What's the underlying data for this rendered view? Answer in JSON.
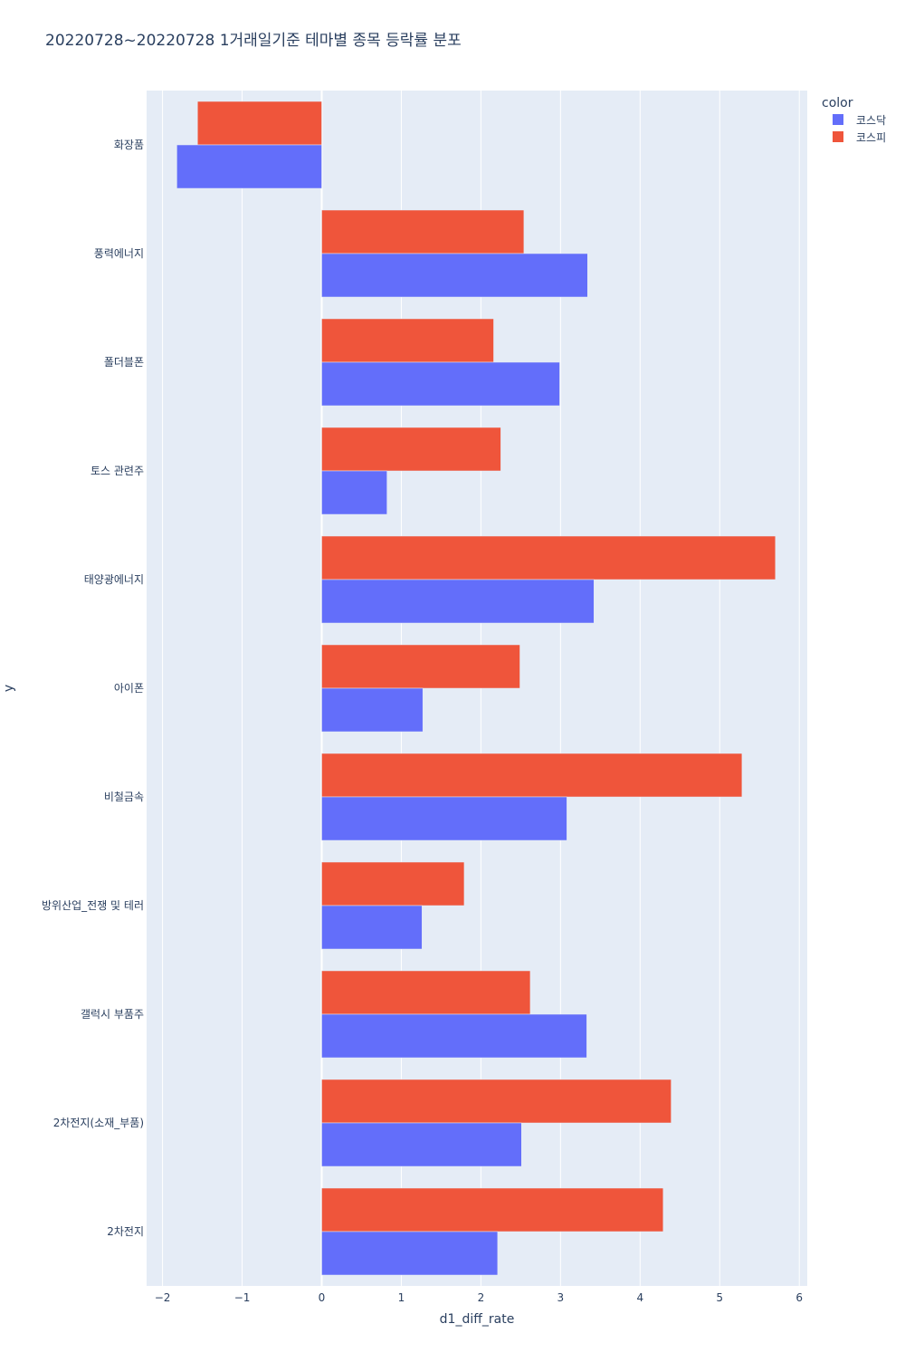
{
  "chart_data": {
    "type": "bar",
    "orientation": "horizontal",
    "barmode": "group",
    "title": "20220728~20220728 1거래일기준 테마별 종목 등락률 분포",
    "xlabel": "d1_diff_rate",
    "ylabel": "y",
    "xlim": [
      -2.2,
      6.1
    ],
    "xticks": [
      -2,
      -1,
      0,
      1,
      2,
      3,
      4,
      5,
      6
    ],
    "xtick_labels": [
      "−2",
      "−1",
      "0",
      "1",
      "2",
      "3",
      "4",
      "5",
      "6"
    ],
    "grid": true,
    "legend_title": "color",
    "legend_position": "top-right",
    "categories": [
      "화장품",
      "풍력에너지",
      "폴더블폰",
      "토스 관련주",
      "태양광에너지",
      "아이폰",
      "비철금속",
      "방위산업_전쟁 및 테러",
      "갤럭시 부품주",
      "2차전지(소재_부품)",
      "2차전지"
    ],
    "series": [
      {
        "name": "코스닥",
        "color": "#636efa",
        "values": [
          -1.82,
          3.34,
          2.99,
          0.82,
          3.42,
          1.27,
          3.08,
          1.26,
          3.33,
          2.51,
          2.21
        ]
      },
      {
        "name": "코스피",
        "color": "#ef553b",
        "values": [
          -1.56,
          2.54,
          2.16,
          2.25,
          5.7,
          2.49,
          5.28,
          1.79,
          2.62,
          4.39,
          4.29
        ]
      }
    ]
  }
}
